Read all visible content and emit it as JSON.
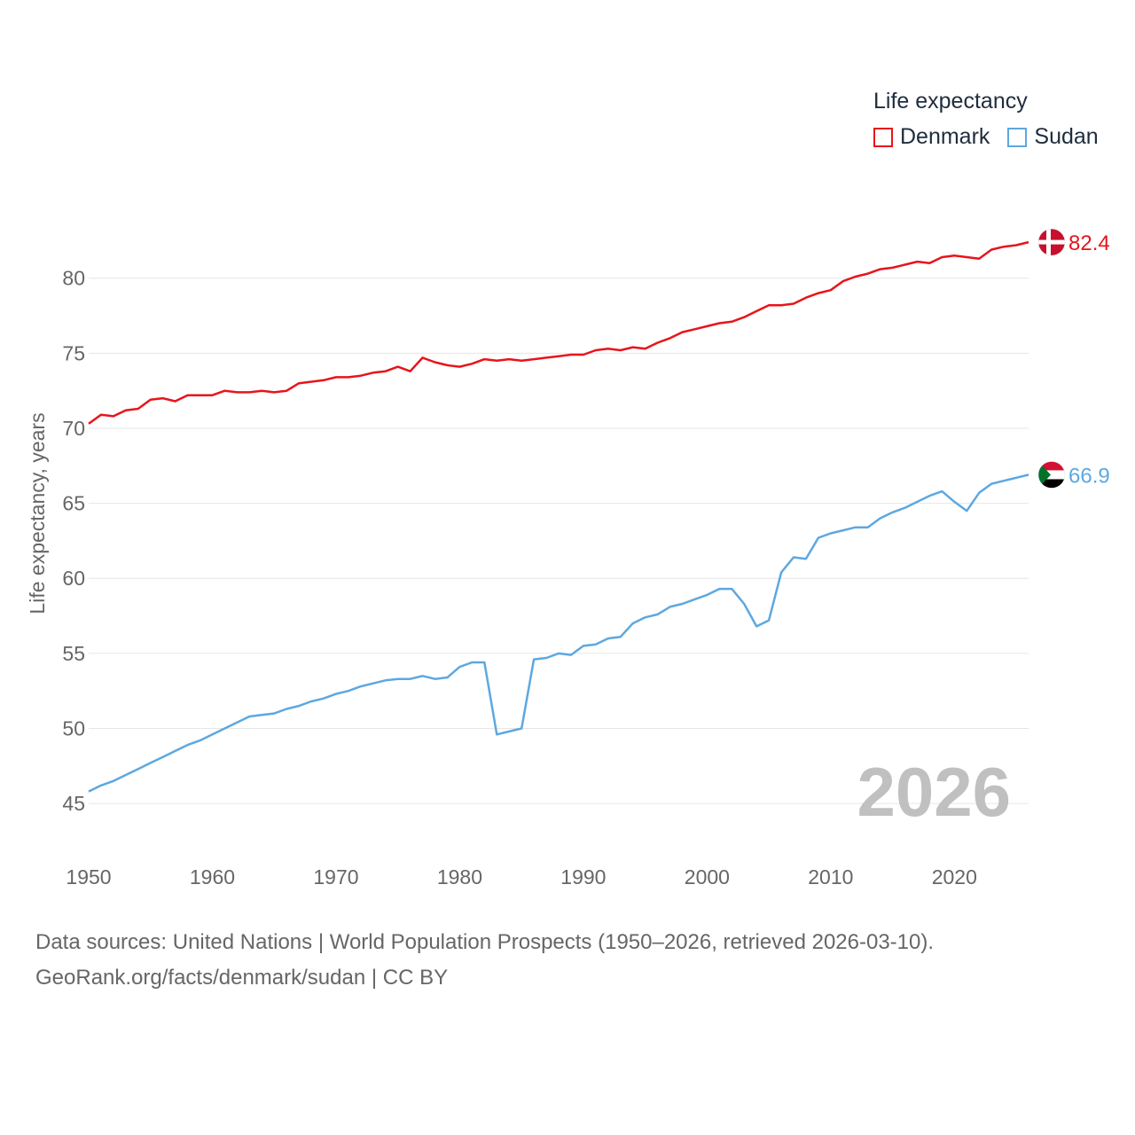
{
  "legend": {
    "title": "Life expectancy",
    "items": [
      {
        "name": "Denmark",
        "color": "#e8141b"
      },
      {
        "name": "Sudan",
        "color": "#5da8e0"
      }
    ]
  },
  "source": {
    "line1": "Data sources: United Nations | World Population Prospects (1950–2026, retrieved 2026-03-10).",
    "line2": "GeoRank.org/facts/denmark/sudan | CC BY"
  },
  "chart_data": {
    "type": "line",
    "title": "Life expectancy",
    "xlabel": "",
    "ylabel": "Life expectancy, years",
    "xlim": [
      1950,
      2026
    ],
    "ylim": [
      43,
      84
    ],
    "yticks": [
      45,
      50,
      55,
      60,
      65,
      70,
      75,
      80
    ],
    "xticks": [
      1950,
      1960,
      1970,
      1980,
      1990,
      2000,
      2010,
      2020
    ],
    "year_label": "2026",
    "x": [
      1950,
      1951,
      1952,
      1953,
      1954,
      1955,
      1956,
      1957,
      1958,
      1959,
      1960,
      1961,
      1962,
      1963,
      1964,
      1965,
      1966,
      1967,
      1968,
      1969,
      1970,
      1971,
      1972,
      1973,
      1974,
      1975,
      1976,
      1977,
      1978,
      1979,
      1980,
      1981,
      1982,
      1983,
      1984,
      1985,
      1986,
      1987,
      1988,
      1989,
      1990,
      1991,
      1992,
      1993,
      1994,
      1995,
      1996,
      1997,
      1998,
      1999,
      2000,
      2001,
      2002,
      2003,
      2004,
      2005,
      2006,
      2007,
      2008,
      2009,
      2010,
      2011,
      2012,
      2013,
      2014,
      2015,
      2016,
      2017,
      2018,
      2019,
      2020,
      2021,
      2022,
      2023,
      2024,
      2025,
      2026
    ],
    "series": [
      {
        "name": "Denmark",
        "color": "#e8141b",
        "end_label": "82.4",
        "flag": "denmark-flag",
        "values": [
          70.3,
          70.9,
          70.8,
          71.2,
          71.3,
          71.9,
          72.0,
          71.8,
          72.2,
          72.2,
          72.2,
          72.5,
          72.4,
          72.4,
          72.5,
          72.4,
          72.5,
          73.0,
          73.1,
          73.2,
          73.4,
          73.4,
          73.5,
          73.7,
          73.8,
          74.1,
          73.8,
          74.7,
          74.4,
          74.2,
          74.1,
          74.3,
          74.6,
          74.5,
          74.6,
          74.5,
          74.6,
          74.7,
          74.8,
          74.9,
          74.9,
          75.2,
          75.3,
          75.2,
          75.4,
          75.3,
          75.7,
          76.0,
          76.4,
          76.6,
          76.8,
          77.0,
          77.1,
          77.4,
          77.8,
          78.2,
          78.2,
          78.3,
          78.7,
          79.0,
          79.2,
          79.8,
          80.1,
          80.3,
          80.6,
          80.7,
          80.9,
          81.1,
          81.0,
          81.4,
          81.5,
          81.4,
          81.3,
          81.9,
          82.1,
          82.2,
          82.4
        ]
      },
      {
        "name": "Sudan",
        "color": "#5da8e0",
        "end_label": "66.9",
        "flag": "sudan-flag",
        "values": [
          45.8,
          46.2,
          46.5,
          46.9,
          47.3,
          47.7,
          48.1,
          48.5,
          48.9,
          49.2,
          49.6,
          50.0,
          50.4,
          50.8,
          50.9,
          51.0,
          51.3,
          51.5,
          51.8,
          52.0,
          52.3,
          52.5,
          52.8,
          53.0,
          53.2,
          53.3,
          53.3,
          53.5,
          53.3,
          53.4,
          54.1,
          54.4,
          54.4,
          49.6,
          49.8,
          50.0,
          54.6,
          54.7,
          55.0,
          54.9,
          55.5,
          55.6,
          56.0,
          56.1,
          57.0,
          57.4,
          57.6,
          58.1,
          58.3,
          58.6,
          58.9,
          59.3,
          59.3,
          58.3,
          56.8,
          57.2,
          60.4,
          61.4,
          61.3,
          62.7,
          63.0,
          63.2,
          63.4,
          63.4,
          64.0,
          64.4,
          64.7,
          65.1,
          65.5,
          65.8,
          65.1,
          64.5,
          65.7,
          66.3,
          66.5,
          66.7,
          66.9
        ]
      }
    ]
  }
}
